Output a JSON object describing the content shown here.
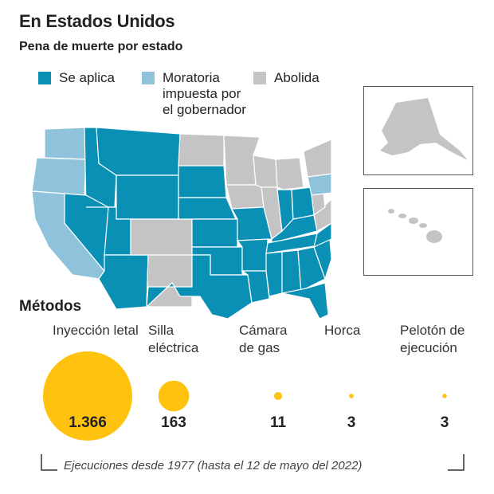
{
  "header": {
    "title": "En Estados Unidos",
    "subtitle": "Pena de muerte por estado"
  },
  "legend": [
    {
      "label": "Se aplica",
      "color": "#0a8fb5"
    },
    {
      "label": "Moratoria impuesta por el gobernador",
      "color": "#8fc3dc"
    },
    {
      "label": "Abolida",
      "color": "#c4c4c4"
    }
  ],
  "map": {
    "colors": {
      "applies": "#0a8fb5",
      "moratorium": "#8fc3dc",
      "abolished": "#c4c4c4"
    },
    "insets": [
      "alaska",
      "hawaii"
    ]
  },
  "methods_title": "Métodos",
  "chart_data": {
    "type": "bubble",
    "categories": [
      "Inyección letal",
      "Silla eléctrica",
      "Cámara de gas",
      "Horca",
      "Pelotón de ejecución"
    ],
    "values": [
      1366,
      163,
      11,
      3,
      3
    ],
    "value_labels": [
      "1.366",
      "163",
      "11",
      "3",
      "3"
    ],
    "color": "#ffc20e",
    "caption": "Ejecuciones desde 1977 (hasta el 12 de mayo del 2022)"
  }
}
